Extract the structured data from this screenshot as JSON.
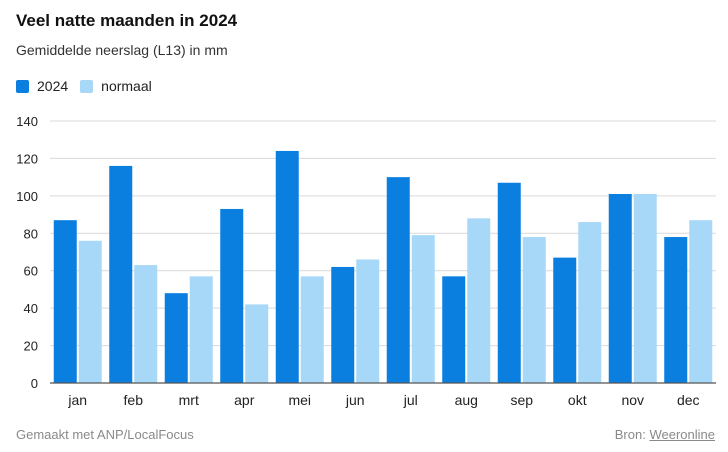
{
  "header": {
    "title": "Veel natte maanden in 2024",
    "subtitle": "Gemiddelde neerslag (L13) in mm"
  },
  "footer": {
    "made_with": "Gemaakt met ANP/LocalFocus",
    "source_prefix": "Bron:",
    "source_link": "Weeronline"
  },
  "colors": {
    "series_2024": "#0a7fe0",
    "series_normaal": "#a8d8f8",
    "grid": "#d9d9d9",
    "axis": "#555555"
  },
  "chart_data": {
    "type": "bar",
    "title": "Veel natte maanden in 2024",
    "subtitle": "Gemiddelde neerslag (L13) in mm",
    "categories": [
      "jan",
      "feb",
      "mrt",
      "apr",
      "mei",
      "jun",
      "jul",
      "aug",
      "sep",
      "okt",
      "nov",
      "dec"
    ],
    "series": [
      {
        "name": "2024",
        "values": [
          87,
          116,
          48,
          93,
          124,
          62,
          110,
          57,
          107,
          67,
          101,
          78
        ]
      },
      {
        "name": "normaal",
        "values": [
          76,
          63,
          57,
          42,
          57,
          66,
          79,
          88,
          78,
          86,
          101,
          87
        ]
      }
    ],
    "yticks": [
      0,
      20,
      40,
      60,
      80,
      100,
      120,
      140
    ],
    "ylim": [
      0,
      140
    ],
    "grid": true,
    "legend_position": "top-left"
  }
}
